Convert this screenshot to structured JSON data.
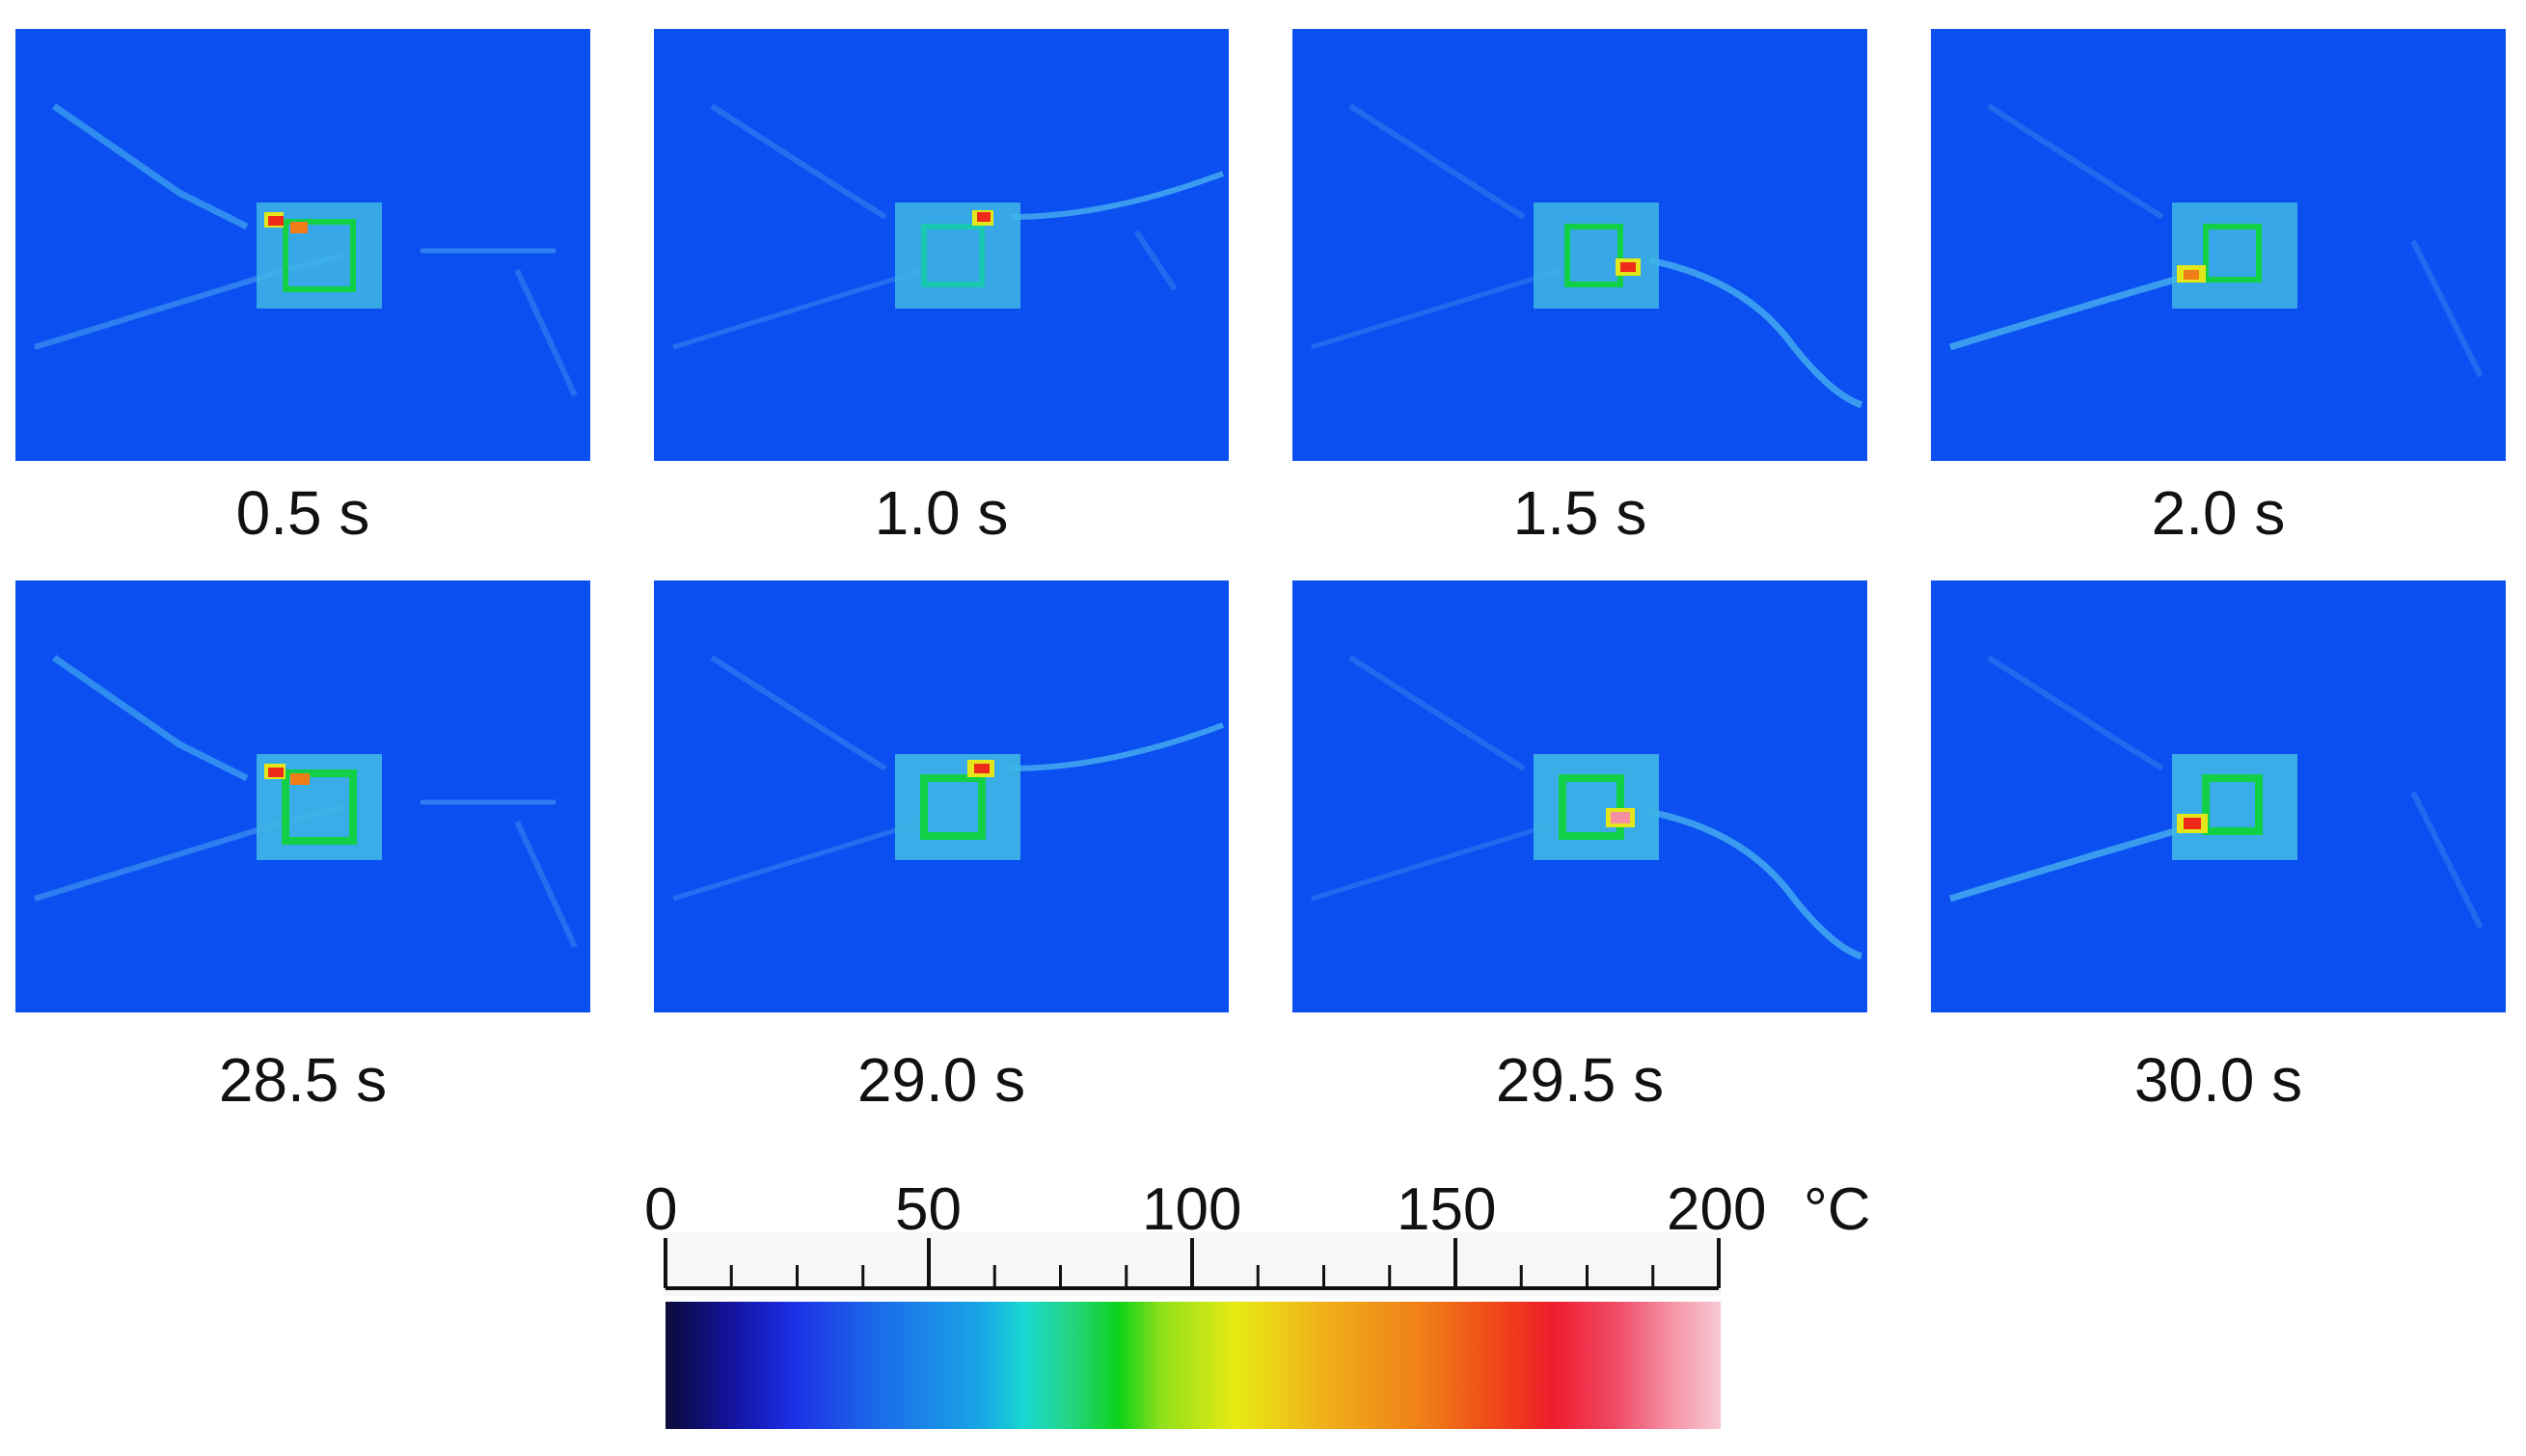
{
  "frames": [
    {
      "time_label": "0.5 s"
    },
    {
      "time_label": "1.0 s"
    },
    {
      "time_label": "1.5 s"
    },
    {
      "time_label": "2.0 s"
    },
    {
      "time_label": "28.5 s"
    },
    {
      "time_label": "29.0 s"
    },
    {
      "time_label": "29.5 s"
    },
    {
      "time_label": "30.0 s"
    }
  ],
  "colorbar": {
    "tick_labels": [
      "0",
      "50",
      "100",
      "150",
      "200"
    ],
    "unit": "°C",
    "min": 0,
    "max": 200,
    "colors": {
      "background": "#0b4ff0",
      "low": "#0b0b3a",
      "mid": "#0ed21a",
      "high": "#f7c9d4"
    }
  }
}
